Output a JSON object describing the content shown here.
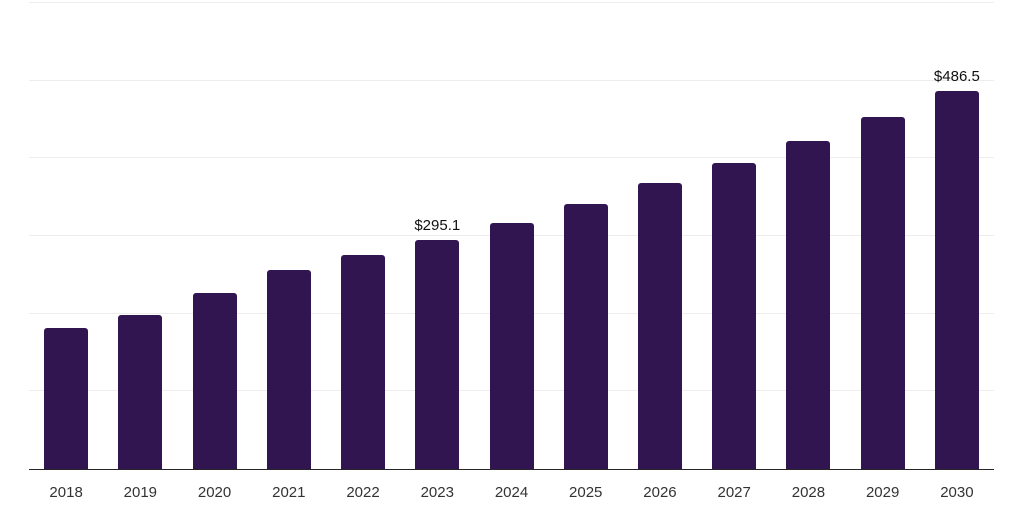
{
  "chart_data": {
    "type": "bar",
    "title": "",
    "xlabel": "",
    "ylabel": "",
    "categories": [
      "2018",
      "2019",
      "2020",
      "2021",
      "2022",
      "2023",
      "2024",
      "2025",
      "2026",
      "2027",
      "2028",
      "2029",
      "2030"
    ],
    "values": [
      181.6,
      198.8,
      227.0,
      256.5,
      275.9,
      295.1,
      317.0,
      340.6,
      368.0,
      393.5,
      422.8,
      453.8,
      486.5
    ],
    "data_labels": {
      "2023": "$295.1",
      "2030": "$486.5"
    },
    "ylim": [
      0,
      600
    ],
    "gridline_interval": 100,
    "grid": true,
    "legend": false,
    "y_tick_labels_visible": false,
    "colors": {
      "bar": "#311550",
      "background": "#ffffff",
      "gridline": "#ededed",
      "axis_line": "#262626",
      "tick_label": "#333333",
      "data_label": "#111111"
    }
  }
}
